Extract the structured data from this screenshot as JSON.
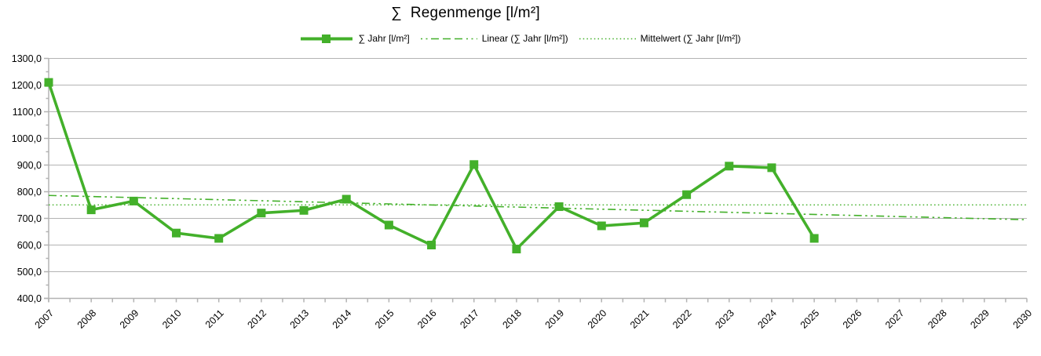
{
  "colors": {
    "series_green": "#43b02a",
    "gridline_gray": "#b3b3b3",
    "axis_gray": "#b3b3b3",
    "text": "#000000"
  },
  "chart_data": {
    "type": "line",
    "title": "∑  Regenmenge [l/m²]",
    "xlabel": "",
    "ylabel": "",
    "ylim": [
      400,
      1300
    ],
    "ytick_step": 100,
    "grid": "horizontal",
    "legend_position": "top-center",
    "y_ticks": [
      "1300,0",
      "1200,0",
      "1100,0",
      "1000,0",
      "900,0",
      "800,0",
      "700,0",
      "600,0",
      "500,0",
      "400,0"
    ],
    "categories": [
      "2007",
      "2008",
      "2009",
      "2010",
      "2011",
      "2012",
      "2013",
      "2014",
      "2015",
      "2016",
      "2017",
      "2018",
      "2019",
      "2020",
      "2021",
      "2022",
      "2023",
      "2024",
      "2025",
      "2026",
      "2027",
      "2028",
      "2029",
      "2030"
    ],
    "series": [
      {
        "name": "∑ Jahr [l/m²]",
        "style": "solid-square-markers",
        "values": [
          1210,
          732,
          765,
          645,
          625,
          720,
          730,
          772,
          675,
          600,
          902,
          585,
          744,
          672,
          683,
          789,
          896,
          890,
          625,
          null,
          null,
          null,
          null,
          null
        ]
      },
      {
        "name": "Linear (∑ Jahr [l/m²])",
        "style": "dash-dot",
        "trend_start_value": 786,
        "trend_end_value": 695
      },
      {
        "name": "Mittelwert (∑ Jahr [l/m²])",
        "style": "dotted",
        "mean_value": 750.5
      }
    ]
  }
}
